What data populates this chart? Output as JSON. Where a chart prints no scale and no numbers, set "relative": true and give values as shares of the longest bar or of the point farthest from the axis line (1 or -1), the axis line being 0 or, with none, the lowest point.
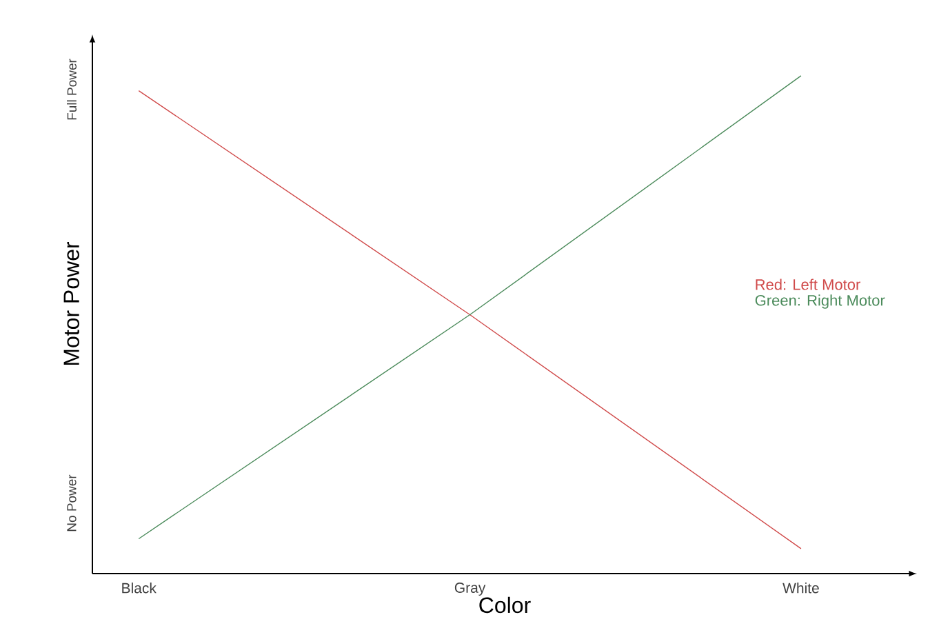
{
  "chart_data": {
    "type": "line",
    "xlabel": "Color",
    "ylabel": "Motor Power",
    "relative": true,
    "categories": [
      "Black",
      "Gray",
      "White"
    ],
    "annotations": [
      "No Power",
      "Full Power"
    ],
    "series": [
      {
        "name": "Red: Left Motor",
        "color": "#d04a4a",
        "values": [
          0.97,
          0.52,
          0.05
        ]
      },
      {
        "name": "Green: Right Motor",
        "color": "#4a8a5a",
        "values": [
          0.07,
          0.52,
          1
        ]
      }
    ],
    "legend": "right",
    "marker": "none",
    "line_style": "solid"
  }
}
